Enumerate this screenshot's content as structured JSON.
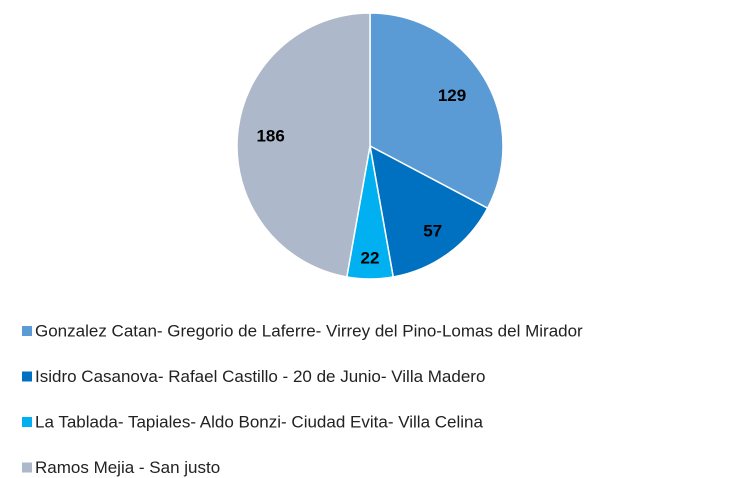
{
  "chart_data": {
    "type": "pie",
    "categories": [
      "Gonzalez Catan- Gregorio de Laferre-  Virrey del Pino-Lomas del Mirador",
      "Isidro Casanova- Rafael Castillo - 20 de Junio- Villa Madero",
      "La Tablada- Tapiales- Aldo Bonzi- Ciudad Evita- Villa Celina",
      "Ramos Mejia - San justo"
    ],
    "values": [
      129,
      57,
      22,
      186
    ],
    "colors": [
      "#5b9bd5",
      "#0070c0",
      "#00b0f0",
      "#adb9ca"
    ],
    "legend": "bottom"
  }
}
